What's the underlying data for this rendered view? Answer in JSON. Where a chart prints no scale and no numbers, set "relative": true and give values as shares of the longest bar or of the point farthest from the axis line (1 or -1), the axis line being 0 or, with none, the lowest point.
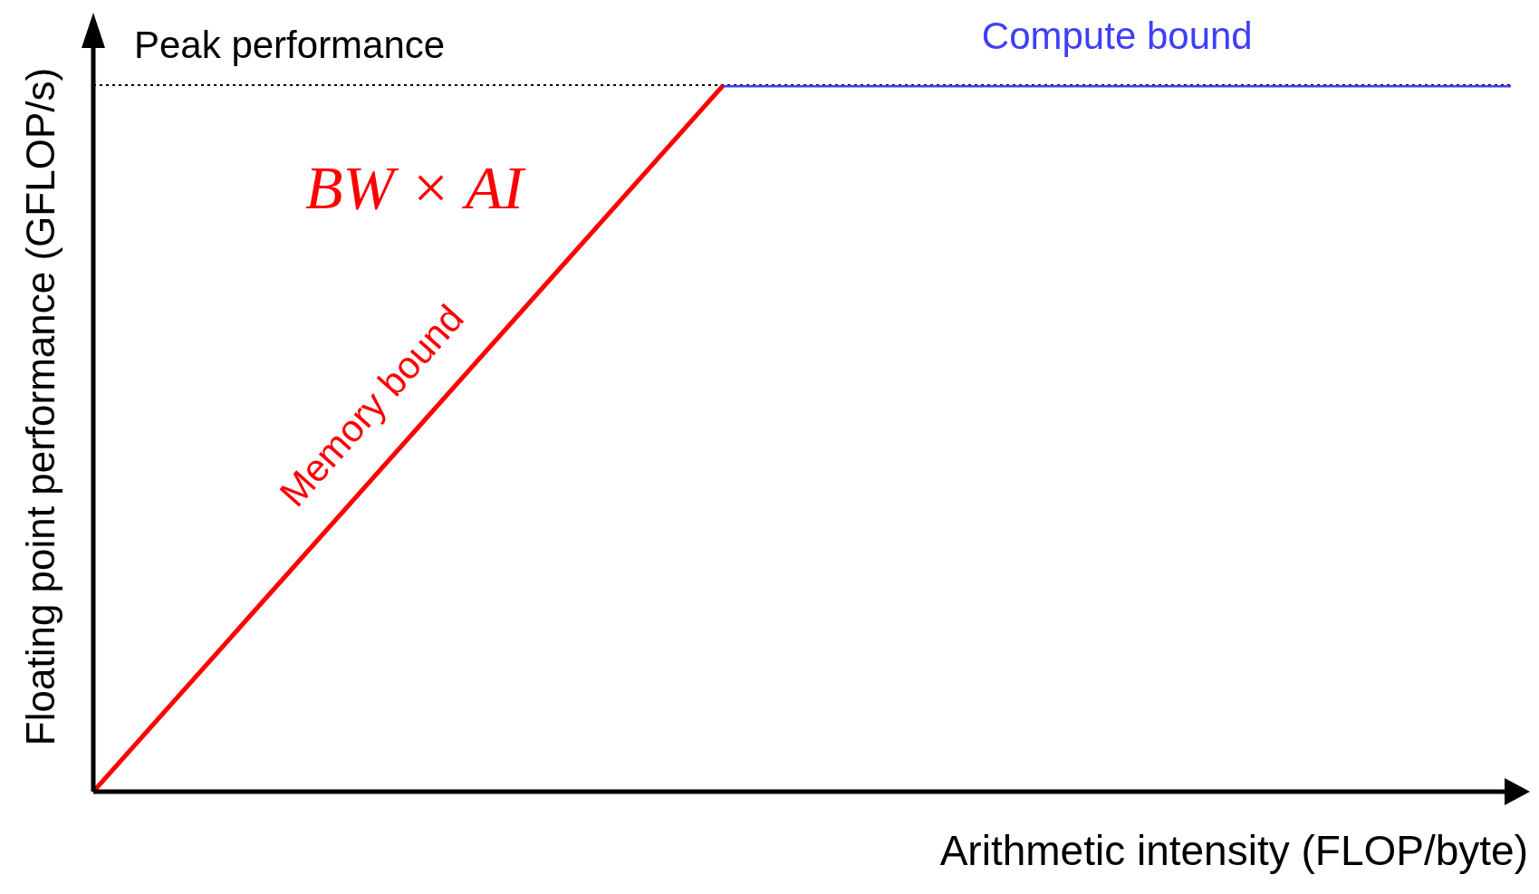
{
  "chart_data": {
    "type": "line",
    "relative": true,
    "xlabel": "Arithmetic intensity (FLOP/byte)",
    "ylabel": "Floating point performance (GFLOP/s)",
    "categories": [
      null,
      null,
      null,
      null,
      null,
      null,
      null,
      null,
      null,
      null
    ],
    "series": [
      {
        "name": "Memory bound",
        "color": "#ff0000",
        "values": [
          0,
          0.25,
          0.5,
          0.75,
          1,
          null,
          null,
          null,
          null,
          null
        ]
      },
      {
        "name": "Compute bound",
        "color": "#3f3ff5",
        "values": [
          null,
          null,
          null,
          null,
          1,
          1,
          1,
          1,
          1,
          1
        ]
      }
    ],
    "ref_lines": [
      {
        "axis": "y",
        "value": 1,
        "label": "Peak performance",
        "line_style": "dotted",
        "color": "#000000"
      }
    ],
    "annotations": [
      "BW × AI"
    ]
  }
}
